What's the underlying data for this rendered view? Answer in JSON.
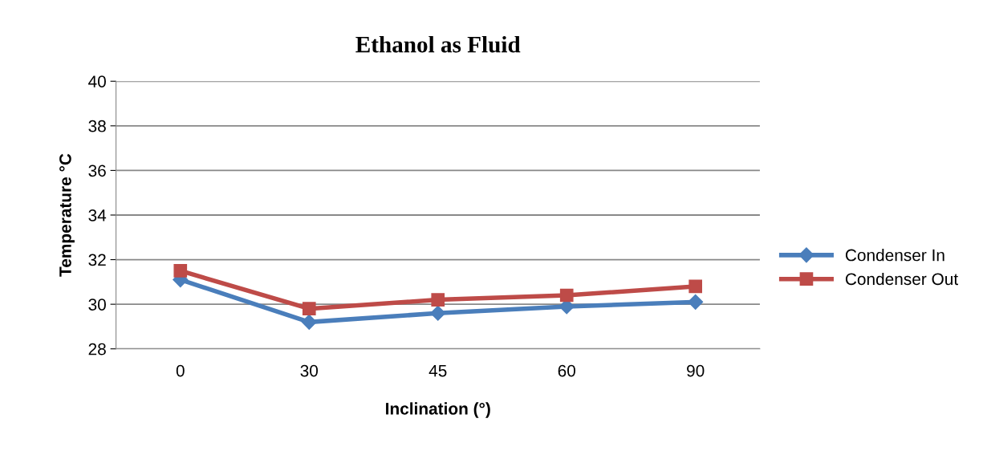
{
  "chart_data": {
    "type": "line",
    "title": "Ethanol as Fluid",
    "xlabel": "Inclination (°)",
    "ylabel": "Temperature °C",
    "categories": [
      "0",
      "30",
      "45",
      "60",
      "90"
    ],
    "series": [
      {
        "name": "Condenser In",
        "color": "#4a7ebb",
        "marker": "diamond",
        "values": [
          31.1,
          29.2,
          29.6,
          29.9,
          30.1
        ]
      },
      {
        "name": "Condenser Out",
        "color": "#be4b48",
        "marker": "square",
        "values": [
          31.5,
          29.8,
          30.2,
          30.4,
          30.8
        ]
      }
    ],
    "ylim": [
      28,
      40
    ],
    "yticks": [
      28,
      30,
      32,
      34,
      36,
      38,
      40
    ],
    "grid": "y",
    "legend": "right",
    "line_style": "solid"
  }
}
